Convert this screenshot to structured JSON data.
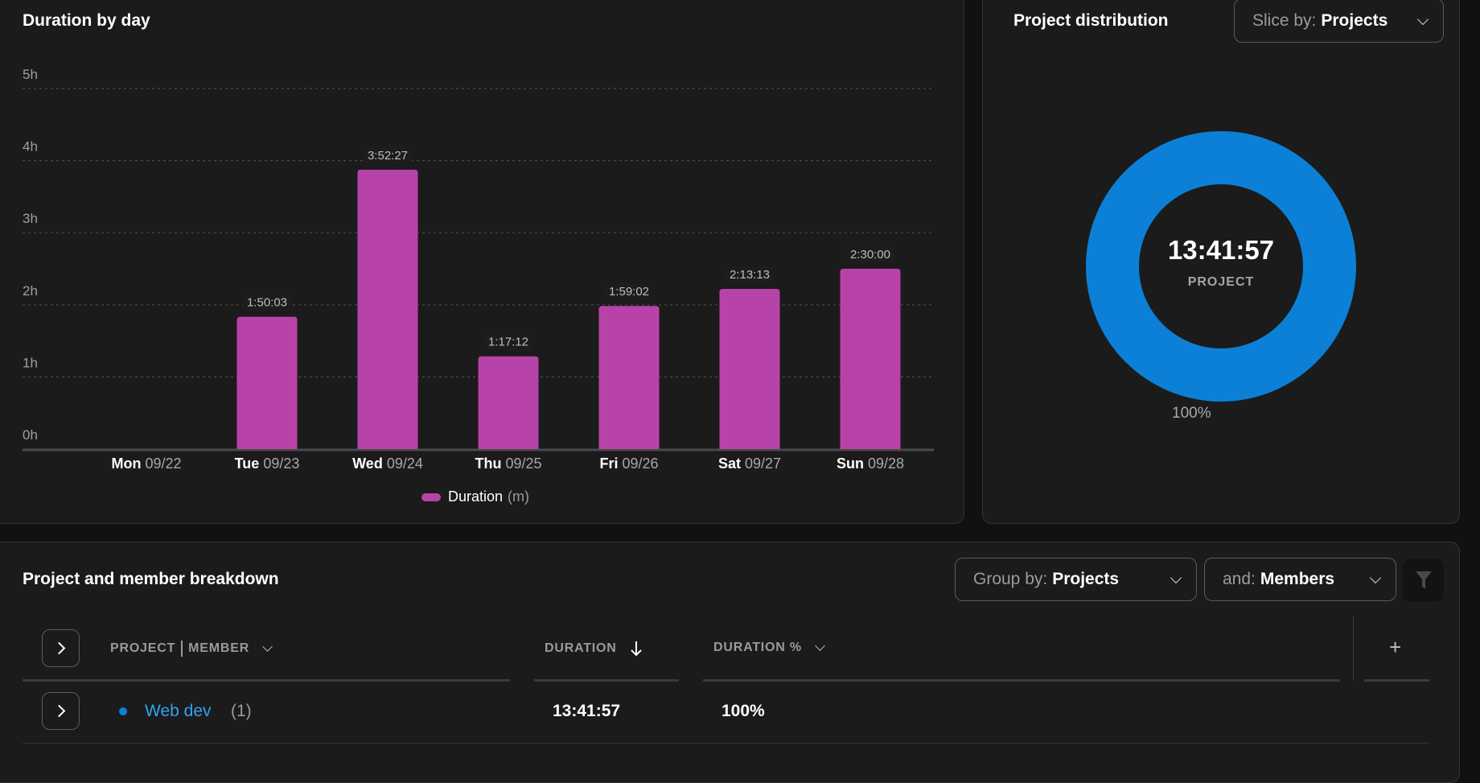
{
  "duration_by_day": {
    "title": "Duration by day",
    "legend": {
      "label": "Duration",
      "unit": "(m)",
      "color": "#b843a8"
    }
  },
  "chart_data": {
    "type": "bar",
    "title": "Duration by day",
    "xlabel": "",
    "ylabel": "",
    "categories": [
      "Mon 09/22",
      "Tue 09/23",
      "Wed 09/24",
      "Thu 09/25",
      "Fri 09/26",
      "Sat 09/27",
      "Sun 09/28"
    ],
    "days": [
      "Mon",
      "Tue",
      "Wed",
      "Thu",
      "Fri",
      "Sat",
      "Sun"
    ],
    "dates": [
      "09/22",
      "09/23",
      "09/24",
      "09/25",
      "09/26",
      "09/27",
      "09/28"
    ],
    "series": [
      {
        "name": "Duration (m)",
        "color": "#b843a8",
        "values_hours": [
          0,
          1.8342,
          3.8742,
          1.2867,
          1.9839,
          2.2203,
          2.5
        ],
        "labels": [
          "",
          "1:50:03",
          "3:52:27",
          "1:17:12",
          "1:59:02",
          "2:13:13",
          "2:30:00"
        ]
      }
    ],
    "yticks": [
      "0h",
      "1h",
      "2h",
      "3h",
      "4h",
      "5h"
    ],
    "ylim": [
      0,
      5
    ],
    "grid": true,
    "legend_position": "bottom"
  },
  "project_distribution": {
    "title": "Project distribution",
    "slice_select": {
      "prefix": "Slice by:",
      "value": "Projects"
    },
    "total": "13:41:57",
    "center_label": "PROJECT",
    "slices": [
      {
        "name": "Web dev",
        "percent": 100,
        "label": "100%",
        "color": "#0b80d6"
      }
    ]
  },
  "breakdown": {
    "title": "Project and member breakdown",
    "group_select": {
      "prefix": "Group by:",
      "value": "Projects"
    },
    "and_select": {
      "prefix": "and:",
      "value": "Members"
    },
    "columns": {
      "project": {
        "left": "PROJECT",
        "right": "MEMBER"
      },
      "duration": "DURATION",
      "duration_pct": "DURATION %",
      "add": "+"
    },
    "rows": [
      {
        "name": "Web dev",
        "count": "(1)",
        "color": "#0b80d6",
        "link_color": "#2ea3f2",
        "duration": "13:41:57",
        "duration_pct": "100%"
      }
    ]
  }
}
